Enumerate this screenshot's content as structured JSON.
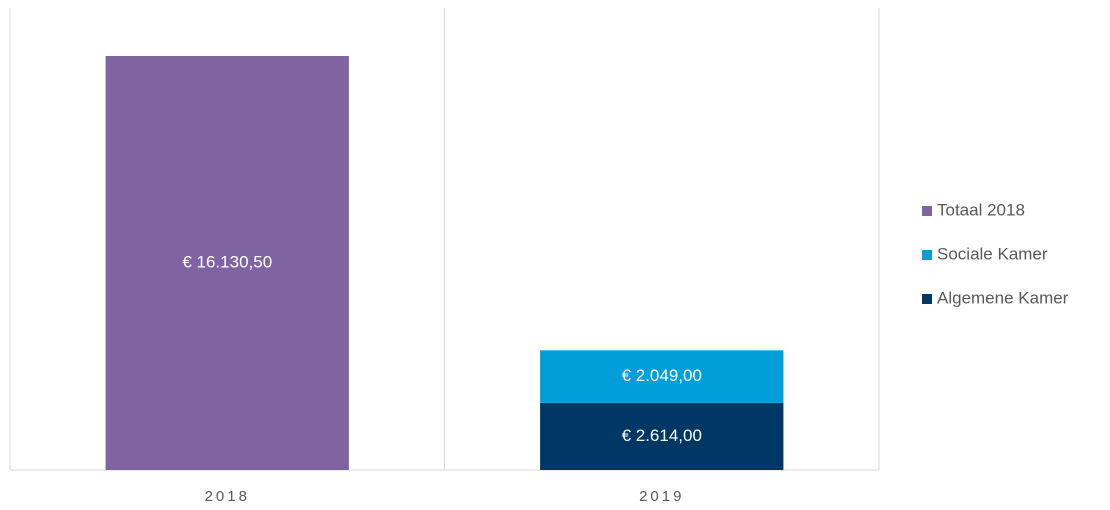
{
  "chart_data": {
    "type": "stacked_bar",
    "categories": [
      "2018",
      "2019"
    ],
    "series": [
      {
        "name": "Algemene Kamer",
        "color": "#003764",
        "values": [
          null,
          2614
        ],
        "value_labels": [
          null,
          "€ 2.614,00"
        ]
      },
      {
        "name": "Sociale Kamer",
        "color": "#009fda",
        "values": [
          null,
          2049
        ],
        "value_labels": [
          null,
          "€ 2.049,00"
        ]
      },
      {
        "name": "Totaal 2018",
        "color": "#8064a2",
        "values": [
          16130.5,
          null
        ],
        "value_labels": [
          "€ 16.130,50",
          null
        ]
      }
    ],
    "ylim": [
      0,
      18000
    ],
    "legend": "right"
  }
}
